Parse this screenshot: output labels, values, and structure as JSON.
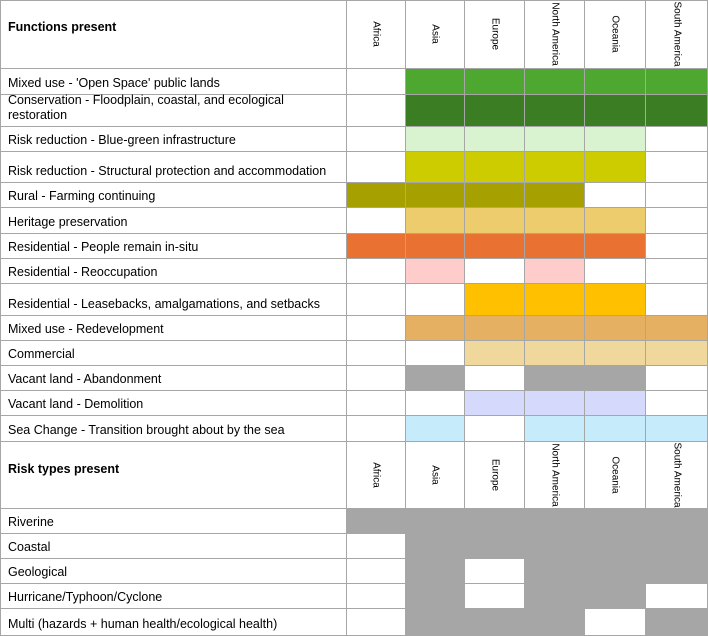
{
  "regions": [
    "Africa",
    "Asia",
    "Europe",
    "North  America",
    "Oceania",
    "South America"
  ],
  "colors": {
    "G": "#4ea72e",
    "D": "#3b7d23",
    "L": "#d9f2d0",
    "Y": "#cccc00",
    "O": "#a6a000",
    "S": "#edcc6d",
    "R": "#e97132",
    "P": "#ffcccc",
    "A": "#ffc000",
    "T": "#e6b063",
    "C": "#f0d89c",
    "X": "#a6a6a6",
    "V": "#d5d9fc",
    "B": "#c6ebfa",
    "W": "#ffffff"
  },
  "sections": [
    {
      "title": "Functions present",
      "rows": [
        {
          "label": "Mixed use - 'Open Space' public lands",
          "cells": [
            "W",
            "G",
            "G",
            "G",
            "G",
            "G"
          ]
        },
        {
          "label": "Conservation - Floodplain, coastal, and ecological restoration",
          "cells": [
            "W",
            "D",
            "D",
            "D",
            "D",
            "D"
          ]
        },
        {
          "label": "Risk reduction - Blue-green infrastructure",
          "cells": [
            "W",
            "L",
            "L",
            "L",
            "L",
            "W"
          ]
        },
        {
          "label": "Risk reduction - Structural protection and accommodation",
          "cells": [
            "W",
            "Y",
            "Y",
            "Y",
            "Y",
            "W"
          ]
        },
        {
          "label": "Rural - Farming continuing",
          "cells": [
            "O",
            "O",
            "O",
            "O",
            "W",
            "W"
          ]
        },
        {
          "label": "Heritage preservation",
          "cells": [
            "W",
            "S",
            "S",
            "S",
            "S",
            "W"
          ]
        },
        {
          "label": "Residential - People remain in-situ",
          "cells": [
            "R",
            "R",
            "R",
            "R",
            "R",
            "W"
          ]
        },
        {
          "label": "Residential - Reoccupation",
          "cells": [
            "W",
            "P",
            "W",
            "P",
            "W",
            "W"
          ]
        },
        {
          "label": "Residential - Leasebacks, amalgamations, and setbacks",
          "cells": [
            "W",
            "W",
            "A",
            "A",
            "A",
            "W"
          ]
        },
        {
          "label": "Mixed use - Redevelopment",
          "cells": [
            "W",
            "T",
            "T",
            "T",
            "T",
            "T"
          ]
        },
        {
          "label": "Commercial",
          "cells": [
            "W",
            "W",
            "C",
            "C",
            "C",
            "C"
          ]
        },
        {
          "label": "Vacant land - Abandonment",
          "cells": [
            "W",
            "X",
            "W",
            "X",
            "X",
            "W"
          ]
        },
        {
          "label": "Vacant land - Demolition",
          "cells": [
            "W",
            "W",
            "V",
            "V",
            "V",
            "W"
          ]
        },
        {
          "label": "Sea Change - Transition brought about by the sea",
          "cells": [
            "W",
            "B",
            "W",
            "B",
            "B",
            "B"
          ]
        }
      ]
    },
    {
      "title": "Risk types present",
      "rows": [
        {
          "label": "Riverine",
          "cells": [
            "X",
            "X",
            "X",
            "X",
            "X",
            "X"
          ]
        },
        {
          "label": "Coastal",
          "cells": [
            "W",
            "X",
            "X",
            "X",
            "X",
            "X"
          ]
        },
        {
          "label": "Geological",
          "cells": [
            "W",
            "X",
            "W",
            "X",
            "X",
            "X"
          ]
        },
        {
          "label": "Hurricane/Typhoon/Cyclone",
          "cells": [
            "W",
            "X",
            "W",
            "X",
            "X",
            "W"
          ]
        },
        {
          "label": "Multi (hazards + human health/ecological health)",
          "cells": [
            "W",
            "X",
            "X",
            "X",
            "W",
            "X"
          ]
        }
      ]
    }
  ]
}
